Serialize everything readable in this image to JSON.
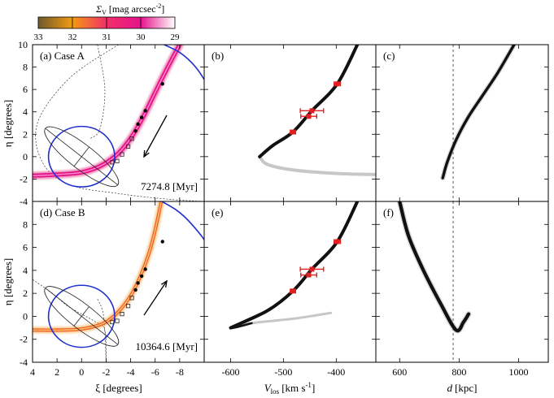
{
  "colorbar": {
    "label_symbol": "Σ",
    "label_sub": "V",
    "label_unit": "[mag arcsec",
    "label_exp": "-2",
    "label_close": "]",
    "ticks": [
      "33",
      "32",
      "31",
      "30",
      "29"
    ],
    "range": [
      33,
      29
    ],
    "colors": [
      "#6e5a2c",
      "#f39a12",
      "#f2306a",
      "#e6148c",
      "#ffffff"
    ]
  },
  "axes_labels": {
    "eta": "η [degrees]",
    "xi": "ξ [degrees]",
    "vlos_main": "V",
    "vlos_sub": "los",
    "vlos_unit": "[km s",
    "vlos_exp": "-1",
    "vlos_close": "]",
    "d_main": "d",
    "d_unit": "[kpc]"
  },
  "panels": [
    {
      "id": "a",
      "label": "(a) Case A",
      "time_label": "7274.8 [Myr]"
    },
    {
      "id": "b",
      "label": "(b)"
    },
    {
      "id": "c",
      "label": "(c)"
    },
    {
      "id": "d",
      "label": "(d) Case B",
      "time_label": "10364.6 [Myr]"
    },
    {
      "id": "e",
      "label": "(e)"
    },
    {
      "id": "f",
      "label": "(f)"
    }
  ],
  "chart_data": {
    "type": "scatter",
    "eta_ticks": [
      -4,
      -2,
      0,
      2,
      4,
      6,
      8,
      10
    ],
    "eta_range": [
      -4,
      10
    ],
    "xi_ticks": [
      4,
      2,
      0,
      -2,
      -4,
      -6,
      -8
    ],
    "xi_range": [
      4,
      -10
    ],
    "vlos_ticks": [
      -600,
      -500,
      -400
    ],
    "vlos_range": [
      -650,
      -325
    ],
    "d_ticks": [
      600,
      800,
      1000
    ],
    "d_range": [
      520,
      1100
    ],
    "d_reference": 780,
    "observed_filled": [
      {
        "xi": -6.6,
        "eta": 6.5
      },
      {
        "xi": -5.2,
        "eta": 4.1
      },
      {
        "xi": -4.9,
        "eta": 3.5
      },
      {
        "xi": -4.6,
        "eta": 2.9
      },
      {
        "xi": -4.4,
        "eta": 2.3
      }
    ],
    "observed_open": [
      {
        "xi": -4.1,
        "eta": 1.6
      },
      {
        "xi": -3.8,
        "eta": 0.9
      },
      {
        "xi": -3.3,
        "eta": 0.2
      },
      {
        "xi": -2.9,
        "eta": -0.4
      },
      {
        "xi": -2.5,
        "eta": -0.5
      }
    ],
    "velocity_points": [
      {
        "vlos": -398,
        "eta": 6.5,
        "err": 6
      },
      {
        "vlos": -446,
        "eta": 4.1,
        "err": 22
      },
      {
        "vlos": -452,
        "eta": 3.6,
        "err": 15
      },
      {
        "vlos": -482,
        "eta": 2.2,
        "err": 5
      }
    ],
    "orbit_A": [
      {
        "xi": -8.0,
        "eta": 10.0
      },
      {
        "xi": -6.8,
        "eta": 7.5
      },
      {
        "xi": -5.9,
        "eta": 5.5
      },
      {
        "xi": -5.0,
        "eta": 3.5
      },
      {
        "xi": -4.1,
        "eta": 1.8
      },
      {
        "xi": -3.0,
        "eta": 0.3
      },
      {
        "xi": -1.6,
        "eta": -0.8
      },
      {
        "xi": 0.0,
        "eta": -1.4
      },
      {
        "xi": 2.0,
        "eta": -1.6
      },
      {
        "xi": 4.0,
        "eta": -1.7
      }
    ],
    "orbit_B": [
      {
        "xi": -6.5,
        "eta": 10.0
      },
      {
        "xi": -6.0,
        "eta": 7.5
      },
      {
        "xi": -5.5,
        "eta": 5.5
      },
      {
        "xi": -4.8,
        "eta": 3.5
      },
      {
        "xi": -4.0,
        "eta": 1.8
      },
      {
        "xi": -3.0,
        "eta": 0.4
      },
      {
        "xi": -1.8,
        "eta": -0.6
      },
      {
        "xi": 0.0,
        "eta": -1.1
      },
      {
        "xi": 2.0,
        "eta": -1.2
      },
      {
        "xi": 4.0,
        "eta": -1.2
      }
    ],
    "vel_A": [
      {
        "vlos": -360,
        "eta": 10.0
      },
      {
        "vlos": -398,
        "eta": 6.5
      },
      {
        "vlos": -446,
        "eta": 4.1
      },
      {
        "vlos": -482,
        "eta": 2.2
      },
      {
        "vlos": -520,
        "eta": 1.0
      },
      {
        "vlos": -545,
        "eta": 0.0
      },
      {
        "vlos": -530,
        "eta": -0.7
      },
      {
        "vlos": -480,
        "eta": -1.2
      },
      {
        "vlos": -400,
        "eta": -1.5
      },
      {
        "vlos": -325,
        "eta": -1.6
      }
    ],
    "vel_B": [
      {
        "vlos": -360,
        "eta": 10.0
      },
      {
        "vlos": -398,
        "eta": 6.5
      },
      {
        "vlos": -446,
        "eta": 4.1
      },
      {
        "vlos": -482,
        "eta": 2.2
      },
      {
        "vlos": -530,
        "eta": 0.5
      },
      {
        "vlos": -600,
        "eta": -1.0
      },
      {
        "vlos": -560,
        "eta": -0.6
      },
      {
        "vlos": -480,
        "eta": -0.2
      },
      {
        "vlos": -410,
        "eta": 0.3
      }
    ],
    "dist_A": [
      {
        "d": 745,
        "eta": -1.9
      },
      {
        "d": 760,
        "eta": -0.5
      },
      {
        "d": 790,
        "eta": 1.5
      },
      {
        "d": 830,
        "eta": 3.5
      },
      {
        "d": 880,
        "eta": 5.5
      },
      {
        "d": 930,
        "eta": 7.5
      },
      {
        "d": 985,
        "eta": 10.0
      }
    ],
    "dist_B": [
      {
        "d": 600,
        "eta": 10.0
      },
      {
        "d": 630,
        "eta": 7.0
      },
      {
        "d": 680,
        "eta": 4.0
      },
      {
        "d": 740,
        "eta": 1.0
      },
      {
        "d": 790,
        "eta": -1.2
      },
      {
        "d": 815,
        "eta": -0.5
      },
      {
        "d": 832,
        "eta": 0.2
      }
    ],
    "m31_disk": {
      "xi": 0,
      "eta": 0,
      "semi_major": 3.0,
      "semi_minor": 0.8,
      "angle_deg": 38
    },
    "circle_radius_deg": 2.7
  }
}
